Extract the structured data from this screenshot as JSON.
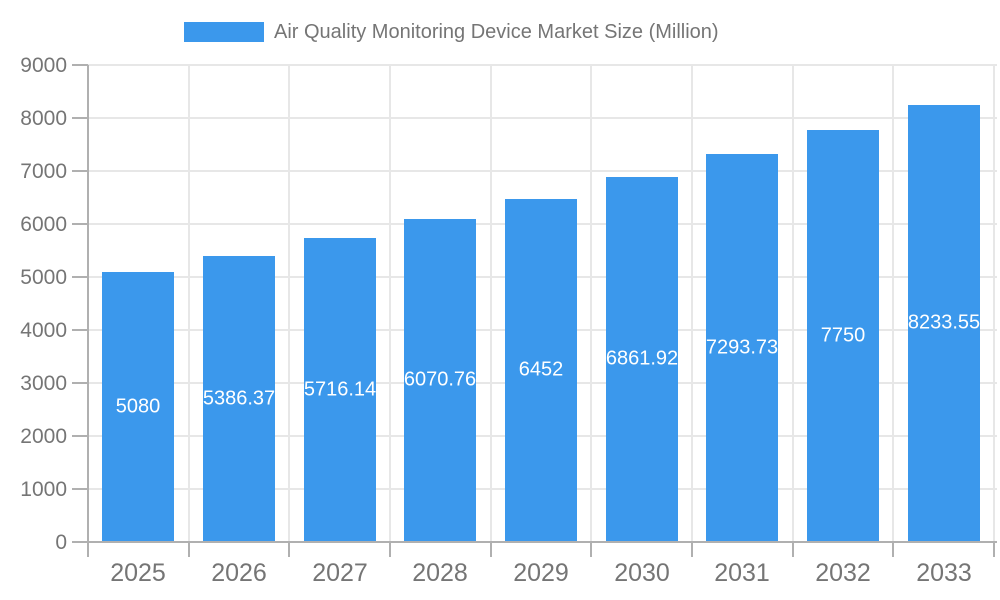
{
  "legend": {
    "label": "Air Quality Monitoring Device Market Size (Million)"
  },
  "chart_data": {
    "type": "bar",
    "title": "Air Quality Monitoring Device Market Size (Million)",
    "series_name": "Air Quality Monitoring Device Market Size (Million)",
    "categories": [
      "2025",
      "2026",
      "2027",
      "2028",
      "2029",
      "2030",
      "2031",
      "2032",
      "2033"
    ],
    "values": [
      5080,
      5386.37,
      5716.14,
      6070.76,
      6452,
      6861.92,
      7293.73,
      7750,
      8233.55
    ],
    "bar_value_labels": [
      "5080",
      "5386.37",
      "5716.14",
      "6070.76",
      "6452",
      "6861.92",
      "7293.73",
      "7750",
      "8233.55"
    ],
    "xlabel": "",
    "ylabel": "",
    "ylim": [
      0,
      9000
    ],
    "y_tick_labels": [
      "0",
      "1000",
      "2000",
      "3000",
      "4000",
      "5000",
      "6000",
      "7000",
      "8000",
      "9000"
    ],
    "grid": true,
    "legend_position": "top"
  },
  "colors": {
    "bar": "#3b98ec",
    "gridline": "#e7e7e7",
    "axis": "#b0b0b0",
    "tick_label": "#757575",
    "title": "#757575",
    "value_label": "#ffffff",
    "background": "#ffffff"
  }
}
